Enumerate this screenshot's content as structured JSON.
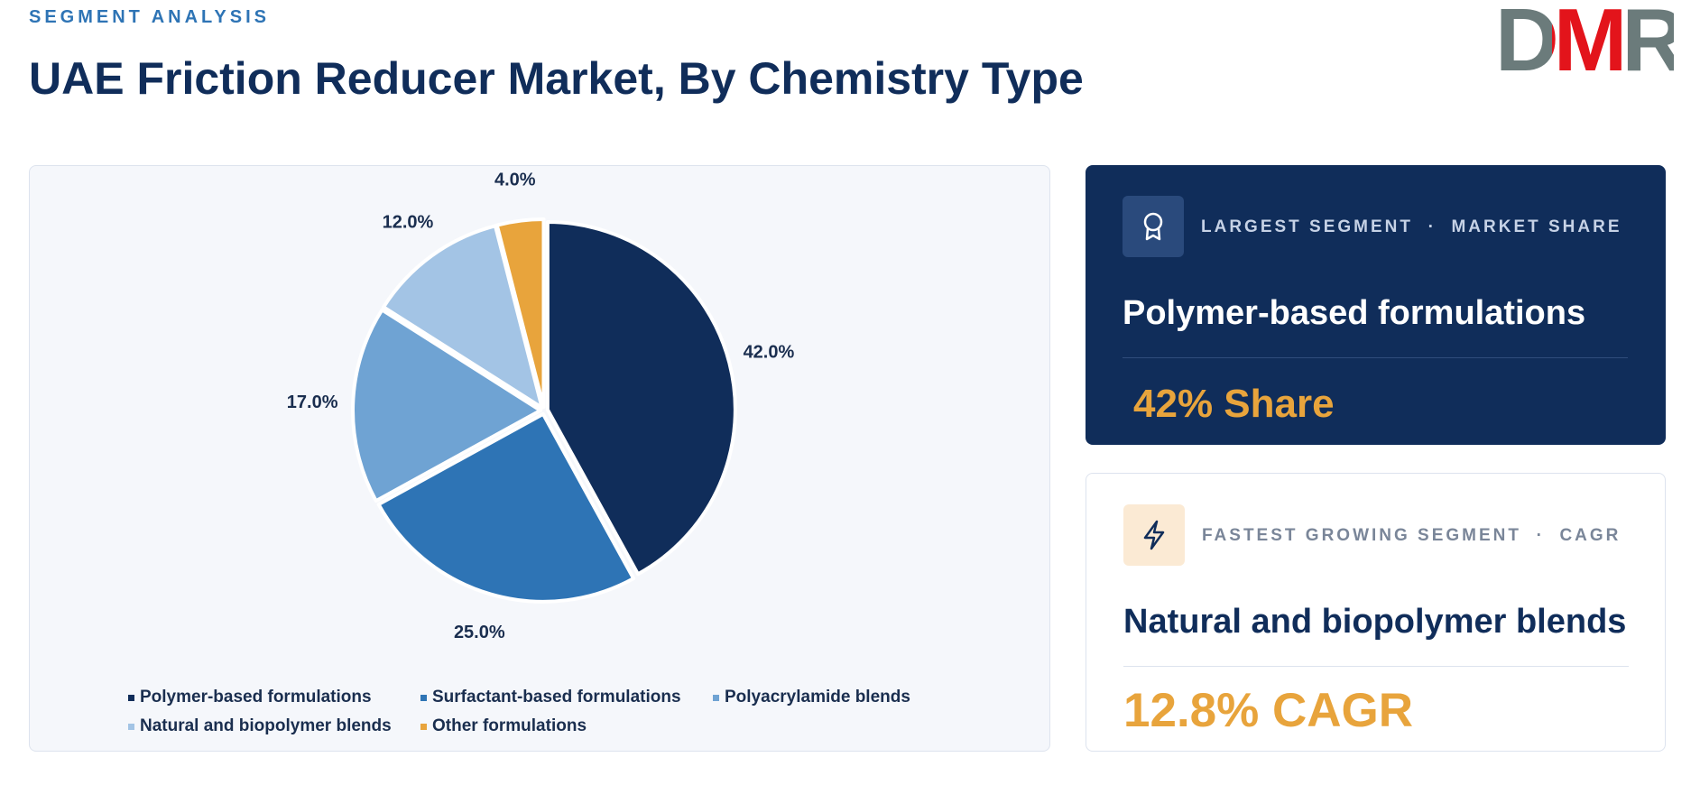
{
  "header": {
    "eyebrow": "SEGMENT ANALYSIS",
    "title": "UAE Friction Reducer Market, By Chemistry Type",
    "logo": "DMR"
  },
  "chart_data": {
    "type": "pie",
    "categories": [
      "Polymer-based formulations",
      "Surfactant-based formulations",
      "Polyacrylamide blends",
      "Natural and biopolymer blends",
      "Other formulations"
    ],
    "values": [
      42,
      25,
      17,
      12,
      4
    ],
    "value_labels": [
      "42.0%",
      "25.0%",
      "17.0%",
      "12.0%",
      "4.0%"
    ],
    "colors": [
      "#102d5a",
      "#2e74b5",
      "#6fa3d3",
      "#a3c4e5",
      "#e8a43c"
    ],
    "legend": "bottom"
  },
  "cards": [
    {
      "label": "LARGEST SEGMENT  ·  MARKET SHARE",
      "title": "Polymer-based formulations",
      "value": "42% Share"
    },
    {
      "label": "FASTEST GROWING SEGMENT  ·  CAGR",
      "title": "Natural and biopolymer blends",
      "value": "12.8% CAGR"
    }
  ]
}
